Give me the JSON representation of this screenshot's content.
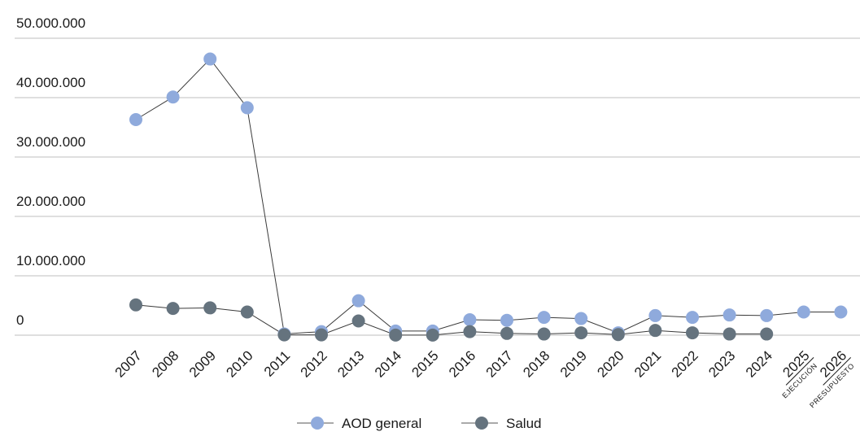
{
  "chart_data": {
    "type": "line",
    "title": "",
    "xlabel": "",
    "ylabel": "",
    "ylim": [
      0,
      50000000
    ],
    "y_ticks": [
      "0",
      "10.000.000",
      "20.000.000",
      "30.000.000",
      "40.000.000",
      "50.000.000"
    ],
    "grid": true,
    "legend_position": "bottom",
    "categories": [
      "2007",
      "2008",
      "2009",
      "2010",
      "2011",
      "2012",
      "2013",
      "2014",
      "2015",
      "2016",
      "2017",
      "2018",
      "2019",
      "2020",
      "2021",
      "2022",
      "2023",
      "2024",
      "2025",
      "2026"
    ],
    "category_sublabels": [
      "",
      "",
      "",
      "",
      "",
      "",
      "",
      "",
      "",
      "",
      "",
      "",
      "",
      "",
      "",
      "",
      "",
      "",
      "EJECUCIÓN",
      "PRESUPUESTO"
    ],
    "series": [
      {
        "name": "AOD general",
        "color": "#8faadc",
        "values": [
          36300000,
          40100000,
          46500000,
          38300000,
          200000,
          600000,
          5800000,
          700000,
          700000,
          2600000,
          2500000,
          3000000,
          2800000,
          400000,
          3300000,
          3000000,
          3400000,
          3300000,
          3900000,
          3900000
        ]
      },
      {
        "name": "Salud",
        "color": "#65737e",
        "values": [
          5100000,
          4500000,
          4600000,
          3900000,
          50000,
          50000,
          2400000,
          20000,
          20000,
          600000,
          300000,
          200000,
          400000,
          100000,
          800000,
          400000,
          200000,
          200000,
          null,
          null
        ]
      }
    ]
  }
}
